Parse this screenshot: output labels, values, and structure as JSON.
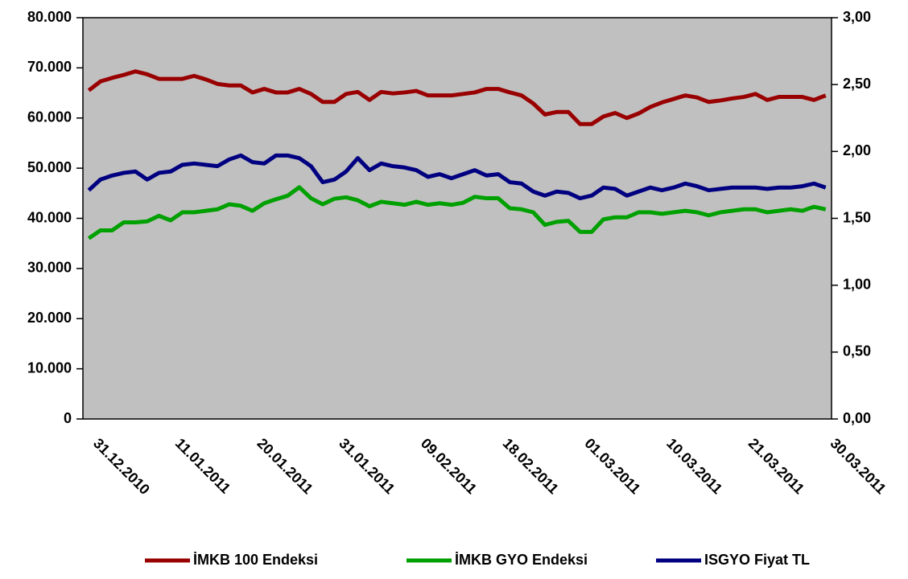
{
  "chart_data": {
    "type": "line",
    "categories": [
      "31.12.2010",
      null,
      null,
      null,
      null,
      null,
      null,
      "11.01.2011",
      null,
      null,
      null,
      null,
      null,
      null,
      "20.01.2011",
      null,
      null,
      null,
      null,
      null,
      null,
      "31.01.2011",
      null,
      null,
      null,
      null,
      null,
      null,
      "09.02.2011",
      null,
      null,
      null,
      null,
      null,
      null,
      "18.02.2011",
      null,
      null,
      null,
      null,
      null,
      null,
      "01.03.2011",
      null,
      null,
      null,
      null,
      null,
      null,
      "10.03.2011",
      null,
      null,
      null,
      null,
      null,
      null,
      "21.03.2011",
      null,
      null,
      null,
      null,
      null,
      null,
      "30.03.2011"
    ],
    "series": [
      {
        "name": "İMKB 100 Endeksi",
        "color": "#990000",
        "axis": "y",
        "values": [
          65500,
          67300,
          68000,
          68600,
          69300,
          68700,
          67800,
          67800,
          67800,
          68400,
          67700,
          66800,
          66500,
          66500,
          65100,
          65800,
          65100,
          65100,
          65800,
          64800,
          63200,
          63200,
          64800,
          65200,
          63600,
          65200,
          64900,
          65100,
          65400,
          64500,
          64500,
          64500,
          64800,
          65100,
          65800,
          65800,
          65100,
          64500,
          62900,
          60700,
          61200,
          61200,
          58800,
          58800,
          60300,
          61000,
          60000,
          60900,
          62200,
          63100,
          63800,
          64500,
          64100,
          63200,
          63500,
          63900,
          64200,
          64800,
          63600,
          64200,
          64200,
          64200,
          63600,
          64500
        ]
      },
      {
        "name": "İMKB GYO Endeksi",
        "color": "#00a000",
        "axis": "y",
        "values": [
          36000,
          37600,
          37600,
          39200,
          39200,
          39400,
          40500,
          39600,
          41200,
          41200,
          41500,
          41800,
          42800,
          42500,
          41500,
          43000,
          43800,
          44500,
          46200,
          44000,
          42800,
          43900,
          44200,
          43600,
          42400,
          43300,
          43000,
          42700,
          43300,
          42700,
          43000,
          42700,
          43100,
          44300,
          44000,
          44000,
          42000,
          41800,
          41200,
          38700,
          39300,
          39500,
          37300,
          37300,
          39800,
          40200,
          40200,
          41200,
          41200,
          40900,
          41200,
          41500,
          41200,
          40600,
          41200,
          41500,
          41800,
          41800,
          41200,
          41500,
          41800,
          41500,
          42300,
          41800
        ]
      },
      {
        "name": "ISGYO Fiyat TL",
        "color": "#000080",
        "axis": "y2",
        "values": [
          1.71,
          1.79,
          1.82,
          1.84,
          1.85,
          1.79,
          1.84,
          1.85,
          1.9,
          1.91,
          1.9,
          1.89,
          1.94,
          1.97,
          1.92,
          1.91,
          1.97,
          1.97,
          1.95,
          1.89,
          1.77,
          1.79,
          1.85,
          1.95,
          1.86,
          1.91,
          1.89,
          1.88,
          1.86,
          1.81,
          1.83,
          1.8,
          1.83,
          1.86,
          1.82,
          1.83,
          1.77,
          1.76,
          1.7,
          1.67,
          1.7,
          1.69,
          1.65,
          1.67,
          1.73,
          1.72,
          1.67,
          1.7,
          1.73,
          1.71,
          1.73,
          1.76,
          1.74,
          1.71,
          1.72,
          1.73,
          1.73,
          1.73,
          1.72,
          1.73,
          1.73,
          1.74,
          1.76,
          1.73
        ]
      }
    ],
    "ylim": [
      0,
      80000
    ],
    "yticks": [
      0,
      {
        "value": 10000,
        "label": "10.000"
      },
      {
        "value": 20000,
        "label": "20.000"
      },
      {
        "value": 30000,
        "label": "30.000"
      },
      {
        "value": 40000,
        "label": "40.000"
      },
      {
        "value": 50000,
        "label": "50.000"
      },
      {
        "value": 60000,
        "label": "60.000"
      },
      {
        "value": 70000,
        "label": "70.000"
      },
      {
        "value": 80000,
        "label": "80.000"
      }
    ],
    "y2lim": [
      0,
      3
    ],
    "y2ticks": [
      {
        "value": 0,
        "label": "0,00"
      },
      {
        "value": 0.5,
        "label": "0,50"
      },
      {
        "value": 1,
        "label": "1,00"
      },
      {
        "value": 1.5,
        "label": "1,50"
      },
      {
        "value": 2,
        "label": "2,00"
      },
      {
        "value": 2.5,
        "label": "2,50"
      },
      {
        "value": 3,
        "label": "3,00"
      }
    ],
    "plot_background": "#c0c0c0",
    "legend": "bottom"
  }
}
